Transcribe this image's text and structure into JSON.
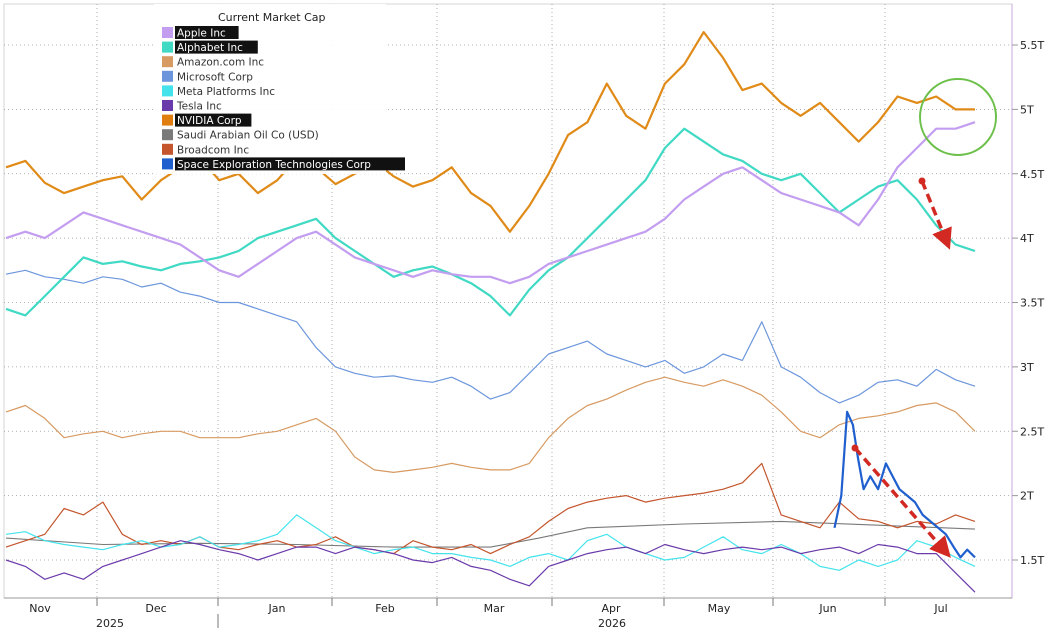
{
  "chart_data": {
    "type": "line",
    "title": "",
    "legend": {
      "title": "Current Market Cap",
      "placement": "top-left",
      "entries": [
        {
          "label": "Apple Inc",
          "color": "#c39ef0",
          "highlighted": true
        },
        {
          "label": "Alphabet Inc",
          "color": "#40d9c4",
          "highlighted": true
        },
        {
          "label": "Amazon.com Inc",
          "color": "#d79a62",
          "highlighted": false
        },
        {
          "label": "Microsoft Corp",
          "color": "#6c96dc",
          "highlighted": false
        },
        {
          "label": "Meta Platforms Inc",
          "color": "#44e3ec",
          "highlighted": false
        },
        {
          "label": "Tesla Inc",
          "color": "#6a3aaa",
          "highlighted": false
        },
        {
          "label": "NVIDIA Corp",
          "color": "#e07f10",
          "highlighted": true
        },
        {
          "label": "Saudi Arabian Oil Co (USD)",
          "color": "#7a7a7a",
          "highlighted": false
        },
        {
          "label": "Broadcom Inc",
          "color": "#c4552c",
          "highlighted": false
        },
        {
          "label": "Space Exploration Technologies Corp",
          "color": "#1f5fce",
          "highlighted": true
        }
      ]
    },
    "x_axis": {
      "months": [
        "Nov",
        "Dec",
        "Jan",
        "Feb",
        "Mar",
        "Apr",
        "May",
        "Jun",
        "Jul"
      ],
      "years": [
        "2025",
        "2026"
      ],
      "range": [
        0,
        1
      ]
    },
    "y_axis": {
      "side": "right",
      "ticks": [
        "5.5T",
        "5T",
        "4.5T",
        "4T",
        "3.5T",
        "3T",
        "2.5T",
        "2T",
        "1.5T"
      ],
      "range": [
        1.2,
        5.85
      ],
      "unit": "T"
    },
    "grid": true,
    "series": [
      {
        "name": "NVIDIA Corp",
        "color": "#e08a18",
        "width": 2.2,
        "x": [
          0,
          0.02,
          0.04,
          0.06,
          0.08,
          0.1,
          0.12,
          0.14,
          0.16,
          0.18,
          0.2,
          0.22,
          0.24,
          0.26,
          0.28,
          0.3,
          0.32,
          0.34,
          0.36,
          0.38,
          0.4,
          0.42,
          0.44,
          0.46,
          0.48,
          0.5,
          0.52,
          0.54,
          0.56,
          0.58,
          0.6,
          0.62,
          0.64,
          0.66,
          0.68,
          0.7,
          0.72,
          0.74,
          0.76,
          0.78,
          0.8,
          0.82,
          0.84,
          0.86,
          0.88,
          0.9,
          0.92,
          0.94,
          0.96,
          0.98,
          1.0
        ],
        "y": [
          4.55,
          4.6,
          4.43,
          4.35,
          4.4,
          4.45,
          4.48,
          4.3,
          4.45,
          4.55,
          4.62,
          4.45,
          4.5,
          4.35,
          4.45,
          4.62,
          4.55,
          4.42,
          4.5,
          4.6,
          4.48,
          4.4,
          4.45,
          4.55,
          4.35,
          4.25,
          4.05,
          4.25,
          4.5,
          4.8,
          4.9,
          5.2,
          4.95,
          4.85,
          5.2,
          5.35,
          5.6,
          5.4,
          5.15,
          5.2,
          5.05,
          4.95,
          5.05,
          4.9,
          4.75,
          4.9,
          5.1,
          5.05,
          5.1,
          5.0,
          5.0
        ]
      },
      {
        "name": "Alphabet Inc",
        "color": "#40d9c4",
        "width": 2.2,
        "x": [
          0,
          0.02,
          0.04,
          0.06,
          0.08,
          0.1,
          0.12,
          0.14,
          0.16,
          0.18,
          0.2,
          0.22,
          0.24,
          0.26,
          0.28,
          0.3,
          0.32,
          0.34,
          0.36,
          0.38,
          0.4,
          0.42,
          0.44,
          0.46,
          0.48,
          0.5,
          0.52,
          0.54,
          0.56,
          0.58,
          0.6,
          0.62,
          0.64,
          0.66,
          0.68,
          0.7,
          0.72,
          0.74,
          0.76,
          0.78,
          0.8,
          0.82,
          0.84,
          0.86,
          0.88,
          0.9,
          0.92,
          0.94,
          0.96,
          0.98,
          1.0
        ],
        "y": [
          3.45,
          3.4,
          3.55,
          3.7,
          3.85,
          3.8,
          3.82,
          3.78,
          3.75,
          3.8,
          3.82,
          3.85,
          3.9,
          4.0,
          4.05,
          4.1,
          4.15,
          4.0,
          3.9,
          3.8,
          3.7,
          3.75,
          3.78,
          3.72,
          3.65,
          3.55,
          3.4,
          3.6,
          3.75,
          3.85,
          4.0,
          4.15,
          4.3,
          4.45,
          4.7,
          4.85,
          4.75,
          4.65,
          4.6,
          4.5,
          4.45,
          4.5,
          4.35,
          4.2,
          4.3,
          4.4,
          4.45,
          4.3,
          4.1,
          3.95,
          3.9
        ]
      },
      {
        "name": "Apple Inc",
        "color": "#c39ef0",
        "width": 2.2,
        "x": [
          0,
          0.02,
          0.04,
          0.06,
          0.08,
          0.1,
          0.12,
          0.14,
          0.16,
          0.18,
          0.2,
          0.22,
          0.24,
          0.26,
          0.28,
          0.3,
          0.32,
          0.34,
          0.36,
          0.38,
          0.4,
          0.42,
          0.44,
          0.46,
          0.48,
          0.5,
          0.52,
          0.54,
          0.56,
          0.58,
          0.6,
          0.62,
          0.64,
          0.66,
          0.68,
          0.7,
          0.72,
          0.74,
          0.76,
          0.78,
          0.8,
          0.82,
          0.84,
          0.86,
          0.88,
          0.9,
          0.92,
          0.94,
          0.96,
          0.98,
          1.0
        ],
        "y": [
          4.0,
          4.05,
          4.0,
          4.1,
          4.2,
          4.15,
          4.1,
          4.05,
          4.0,
          3.95,
          3.85,
          3.75,
          3.7,
          3.8,
          3.9,
          4.0,
          4.05,
          3.95,
          3.85,
          3.8,
          3.75,
          3.7,
          3.75,
          3.72,
          3.7,
          3.7,
          3.65,
          3.7,
          3.8,
          3.85,
          3.9,
          3.95,
          4.0,
          4.05,
          4.15,
          4.3,
          4.4,
          4.5,
          4.55,
          4.45,
          4.35,
          4.3,
          4.25,
          4.2,
          4.1,
          4.3,
          4.55,
          4.7,
          4.85,
          4.85,
          4.9
        ]
      },
      {
        "name": "Microsoft Corp",
        "color": "#6c96dc",
        "width": 1.2,
        "x": [
          0,
          0.02,
          0.04,
          0.06,
          0.08,
          0.1,
          0.12,
          0.14,
          0.16,
          0.18,
          0.2,
          0.22,
          0.24,
          0.26,
          0.28,
          0.3,
          0.32,
          0.34,
          0.36,
          0.38,
          0.4,
          0.42,
          0.44,
          0.46,
          0.48,
          0.5,
          0.52,
          0.54,
          0.56,
          0.58,
          0.6,
          0.62,
          0.64,
          0.66,
          0.68,
          0.7,
          0.72,
          0.74,
          0.76,
          0.78,
          0.8,
          0.82,
          0.84,
          0.86,
          0.88,
          0.9,
          0.92,
          0.94,
          0.96,
          0.98,
          1.0
        ],
        "y": [
          3.72,
          3.75,
          3.7,
          3.68,
          3.65,
          3.7,
          3.68,
          3.62,
          3.65,
          3.58,
          3.55,
          3.5,
          3.5,
          3.45,
          3.4,
          3.35,
          3.15,
          3.0,
          2.95,
          2.92,
          2.93,
          2.9,
          2.88,
          2.92,
          2.85,
          2.75,
          2.8,
          2.95,
          3.1,
          3.15,
          3.2,
          3.1,
          3.05,
          3.0,
          3.05,
          2.95,
          3.0,
          3.1,
          3.05,
          3.35,
          3.0,
          2.92,
          2.8,
          2.72,
          2.78,
          2.88,
          2.9,
          2.85,
          2.98,
          2.9,
          2.85
        ]
      },
      {
        "name": "Amazon.com Inc",
        "color": "#d79a62",
        "width": 1.2,
        "x": [
          0,
          0.02,
          0.04,
          0.06,
          0.08,
          0.1,
          0.12,
          0.14,
          0.16,
          0.18,
          0.2,
          0.22,
          0.24,
          0.26,
          0.28,
          0.3,
          0.32,
          0.34,
          0.36,
          0.38,
          0.4,
          0.42,
          0.44,
          0.46,
          0.48,
          0.5,
          0.52,
          0.54,
          0.56,
          0.58,
          0.6,
          0.62,
          0.64,
          0.66,
          0.68,
          0.7,
          0.72,
          0.74,
          0.76,
          0.78,
          0.8,
          0.82,
          0.84,
          0.86,
          0.88,
          0.9,
          0.92,
          0.94,
          0.96,
          0.98,
          1.0
        ],
        "y": [
          2.65,
          2.7,
          2.6,
          2.45,
          2.48,
          2.5,
          2.45,
          2.48,
          2.5,
          2.5,
          2.45,
          2.45,
          2.45,
          2.48,
          2.5,
          2.55,
          2.6,
          2.5,
          2.3,
          2.2,
          2.18,
          2.2,
          2.22,
          2.25,
          2.22,
          2.2,
          2.2,
          2.25,
          2.45,
          2.6,
          2.7,
          2.75,
          2.82,
          2.88,
          2.92,
          2.88,
          2.85,
          2.9,
          2.85,
          2.78,
          2.65,
          2.5,
          2.45,
          2.55,
          2.6,
          2.62,
          2.65,
          2.7,
          2.72,
          2.65,
          2.5
        ]
      },
      {
        "name": "Broadcom Inc",
        "color": "#c4552c",
        "width": 1.2,
        "x": [
          0,
          0.02,
          0.04,
          0.06,
          0.08,
          0.1,
          0.12,
          0.14,
          0.16,
          0.18,
          0.2,
          0.22,
          0.24,
          0.26,
          0.28,
          0.3,
          0.32,
          0.34,
          0.36,
          0.38,
          0.4,
          0.42,
          0.44,
          0.46,
          0.48,
          0.5,
          0.52,
          0.54,
          0.56,
          0.58,
          0.6,
          0.62,
          0.64,
          0.66,
          0.68,
          0.7,
          0.72,
          0.74,
          0.76,
          0.78,
          0.8,
          0.82,
          0.84,
          0.86,
          0.88,
          0.9,
          0.92,
          0.94,
          0.96,
          0.98,
          1.0
        ],
        "y": [
          1.6,
          1.65,
          1.7,
          1.9,
          1.85,
          1.95,
          1.7,
          1.62,
          1.65,
          1.62,
          1.68,
          1.6,
          1.58,
          1.62,
          1.65,
          1.6,
          1.62,
          1.68,
          1.6,
          1.58,
          1.55,
          1.65,
          1.6,
          1.58,
          1.62,
          1.55,
          1.62,
          1.68,
          1.8,
          1.9,
          1.95,
          1.98,
          2.0,
          1.95,
          1.98,
          2.0,
          2.02,
          2.05,
          2.1,
          2.25,
          1.85,
          1.8,
          1.75,
          1.95,
          1.82,
          1.8,
          1.75,
          1.8,
          1.78,
          1.85,
          1.8
        ]
      },
      {
        "name": "Saudi Arabian Oil Co (USD)",
        "color": "#7a7a7a",
        "width": 1.1,
        "x": [
          0,
          0.1,
          0.2,
          0.3,
          0.4,
          0.5,
          0.55,
          0.6,
          0.7,
          0.8,
          0.9,
          1.0
        ],
        "y": [
          1.67,
          1.62,
          1.63,
          1.62,
          1.6,
          1.6,
          1.67,
          1.75,
          1.78,
          1.8,
          1.77,
          1.74
        ]
      },
      {
        "name": "Meta Platforms Inc",
        "color": "#44e3ec",
        "width": 1.2,
        "x": [
          0,
          0.02,
          0.04,
          0.06,
          0.08,
          0.1,
          0.12,
          0.14,
          0.16,
          0.18,
          0.2,
          0.22,
          0.24,
          0.26,
          0.28,
          0.3,
          0.32,
          0.34,
          0.36,
          0.38,
          0.4,
          0.42,
          0.44,
          0.46,
          0.48,
          0.5,
          0.52,
          0.54,
          0.56,
          0.58,
          0.6,
          0.62,
          0.64,
          0.66,
          0.68,
          0.7,
          0.72,
          0.74,
          0.76,
          0.78,
          0.8,
          0.82,
          0.84,
          0.86,
          0.88,
          0.9,
          0.92,
          0.94,
          0.96,
          0.98,
          1.0
        ],
        "y": [
          1.7,
          1.72,
          1.65,
          1.62,
          1.6,
          1.58,
          1.62,
          1.65,
          1.6,
          1.62,
          1.68,
          1.6,
          1.62,
          1.65,
          1.7,
          1.85,
          1.75,
          1.65,
          1.6,
          1.55,
          1.58,
          1.6,
          1.55,
          1.55,
          1.52,
          1.5,
          1.45,
          1.52,
          1.55,
          1.5,
          1.65,
          1.7,
          1.6,
          1.55,
          1.5,
          1.52,
          1.6,
          1.68,
          1.58,
          1.55,
          1.62,
          1.55,
          1.45,
          1.42,
          1.5,
          1.45,
          1.5,
          1.65,
          1.6,
          1.52,
          1.45
        ]
      },
      {
        "name": "Tesla Inc",
        "color": "#6a3aaa",
        "width": 1.2,
        "x": [
          0,
          0.02,
          0.04,
          0.06,
          0.08,
          0.1,
          0.12,
          0.14,
          0.16,
          0.18,
          0.2,
          0.22,
          0.24,
          0.26,
          0.28,
          0.3,
          0.32,
          0.34,
          0.36,
          0.38,
          0.4,
          0.42,
          0.44,
          0.46,
          0.48,
          0.5,
          0.52,
          0.54,
          0.56,
          0.58,
          0.6,
          0.62,
          0.64,
          0.66,
          0.68,
          0.7,
          0.72,
          0.74,
          0.76,
          0.78,
          0.8,
          0.82,
          0.84,
          0.86,
          0.88,
          0.9,
          0.92,
          0.94,
          0.96,
          0.98,
          1.0
        ],
        "y": [
          1.5,
          1.45,
          1.35,
          1.4,
          1.35,
          1.45,
          1.5,
          1.55,
          1.6,
          1.65,
          1.62,
          1.58,
          1.55,
          1.5,
          1.55,
          1.6,
          1.6,
          1.55,
          1.6,
          1.58,
          1.55,
          1.5,
          1.48,
          1.52,
          1.45,
          1.42,
          1.35,
          1.3,
          1.45,
          1.5,
          1.55,
          1.58,
          1.6,
          1.55,
          1.62,
          1.58,
          1.55,
          1.58,
          1.6,
          1.58,
          1.6,
          1.55,
          1.58,
          1.6,
          1.55,
          1.62,
          1.6,
          1.55,
          1.55,
          1.4,
          1.25
        ]
      },
      {
        "name": "Space Exploration Technologies Corp",
        "color": "#1f5fce",
        "width": 2.2,
        "x": [
          0.855,
          0.862,
          0.868,
          0.874,
          0.879,
          0.885,
          0.892,
          0.9,
          0.908,
          0.915,
          0.922,
          0.93,
          0.938,
          0.946,
          0.954,
          0.962,
          0.97,
          0.978,
          0.985,
          0.992,
          1.0
        ],
        "y": [
          1.75,
          2.0,
          2.65,
          2.55,
          2.3,
          2.05,
          2.15,
          2.05,
          2.25,
          2.15,
          2.05,
          2.0,
          1.95,
          1.85,
          1.8,
          1.75,
          1.7,
          1.6,
          1.52,
          1.58,
          1.52
        ]
      }
    ],
    "annotations": [
      {
        "type": "circle",
        "color": "#6cc04a",
        "target": "Apple Inc / NVIDIA Corp, Jul"
      },
      {
        "type": "arrow",
        "color": "#d22a22",
        "style": "dashed",
        "target": "Alphabet Inc decline, Jul"
      },
      {
        "type": "arrow",
        "color": "#d22a22",
        "style": "dashed",
        "target": "Space Exploration Technologies Corp decline, Jun-Jul"
      }
    ]
  }
}
